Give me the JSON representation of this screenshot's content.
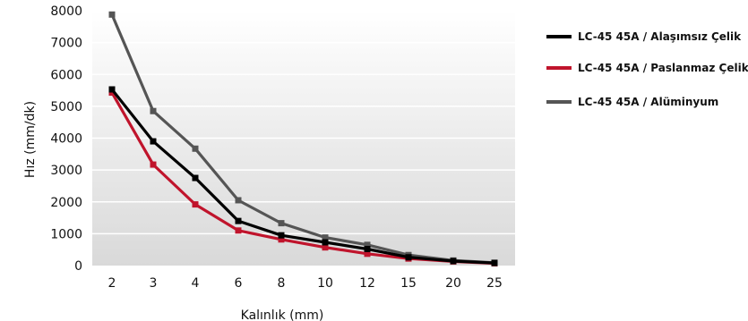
{
  "chart_data": {
    "type": "line",
    "xlabel": "Kalınlık (mm)",
    "ylabel": "Hız (mm/dk)",
    "categories": [
      "2",
      "3",
      "4",
      "6",
      "8",
      "10",
      "12",
      "15",
      "20",
      "25"
    ],
    "ylim": [
      0,
      8000
    ],
    "yticks": [
      0,
      1000,
      2000,
      3000,
      4000,
      5000,
      6000,
      7000,
      8000
    ],
    "grid": false,
    "legend_position": "right",
    "series": [
      {
        "name": "LC-45 45A / Alaşımsız Çelik",
        "color": "#000000",
        "values": [
          5530,
          3900,
          2750,
          1400,
          950,
          730,
          520,
          260,
          140,
          80
        ]
      },
      {
        "name": "LC-45 45A / Paslanmaz Çelik",
        "color": "#c0142c",
        "values": [
          5430,
          3170,
          1920,
          1100,
          820,
          570,
          370,
          220,
          130,
          70
        ]
      },
      {
        "name": "LC-45 45A / Alüminyum",
        "color": "#555555",
        "values": [
          7880,
          4850,
          3670,
          2050,
          1330,
          880,
          650,
          330,
          160,
          90
        ]
      }
    ]
  }
}
